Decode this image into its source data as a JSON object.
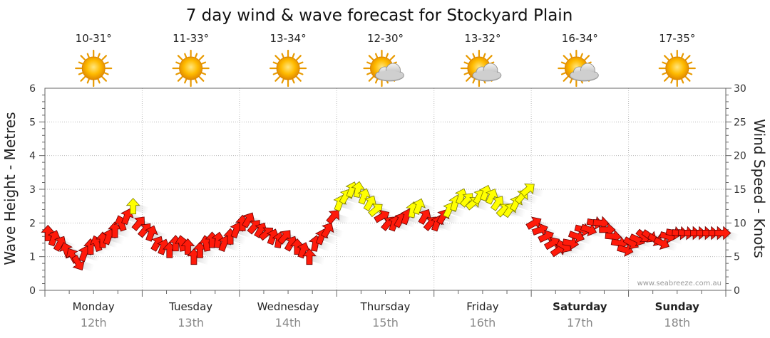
{
  "chart_data": {
    "type": "wind-wave-forecast",
    "title": "7 day wind & wave forecast for Stockyard Plain",
    "ylabel_left": "Wave Height - Metres",
    "ylabel_right": "Wind Speed - Knots",
    "y_left_range": [
      0,
      6
    ],
    "y_right_range": [
      0,
      30
    ],
    "y_left_ticks": [
      "0",
      "1",
      "2",
      "3",
      "4",
      "5",
      "6"
    ],
    "y_right_ticks": [
      "0",
      "5",
      "10",
      "15",
      "20",
      "25",
      "30"
    ],
    "days": [
      {
        "name": "Monday",
        "date": "12th",
        "temp": "10-31°",
        "weather": "sunny",
        "weekend": false
      },
      {
        "name": "Tuesday",
        "date": "13th",
        "temp": "11-33°",
        "weather": "sunny",
        "weekend": false
      },
      {
        "name": "Wednesday",
        "date": "14th",
        "temp": "13-34°",
        "weather": "sunny",
        "weekend": false
      },
      {
        "name": "Thursday",
        "date": "15th",
        "temp": "12-30°",
        "weather": "partly-cloudy",
        "weekend": false
      },
      {
        "name": "Friday",
        "date": "16th",
        "temp": "13-32°",
        "weather": "partly-cloudy",
        "weekend": false
      },
      {
        "name": "Saturday",
        "date": "17th",
        "temp": "16-34°",
        "weather": "partly-cloudy",
        "weekend": true
      },
      {
        "name": "Sunday",
        "date": "18th",
        "temp": "17-35°",
        "weather": "sunny",
        "weekend": true
      }
    ],
    "wind_series": [
      {
        "name": "Monday",
        "speeds": [
          8.5,
          7.8,
          7,
          6,
          5.2,
          4,
          5.5,
          6.5,
          7,
          7.5,
          8,
          9,
          10,
          11,
          12.5,
          10
        ],
        "dirs": [
          180,
          200,
          210,
          160,
          150,
          330,
          200,
          180,
          160,
          180,
          200,
          180,
          160,
          200,
          180,
          220
        ]
      },
      {
        "name": "Tuesday",
        "speeds": [
          9,
          8.5,
          7,
          6.5,
          6,
          7,
          7,
          6.5,
          5,
          6,
          7,
          7.5,
          7.5,
          7,
          8,
          9
        ],
        "dirs": [
          220,
          200,
          210,
          200,
          180,
          180,
          170,
          180,
          180,
          180,
          170,
          180,
          190,
          200,
          180,
          200
        ]
      },
      {
        "name": "Wednesday",
        "speeds": [
          10,
          10.5,
          9.5,
          9,
          8.5,
          8,
          7.5,
          8,
          7,
          6.5,
          6,
          5,
          7,
          8,
          9,
          11
        ],
        "dirs": [
          180,
          210,
          220,
          210,
          230,
          200,
          190,
          220,
          210,
          180,
          200,
          180,
          190,
          200,
          210,
          220
        ]
      },
      {
        "name": "Thursday",
        "speeds": [
          13,
          14,
          15,
          15,
          14,
          13,
          12,
          11,
          10,
          10,
          10.5,
          11,
          12,
          12.5,
          11,
          10
        ],
        "dirs": [
          200,
          210,
          200,
          190,
          200,
          210,
          230,
          240,
          220,
          200,
          210,
          200,
          190,
          200,
          210,
          220
        ]
      },
      {
        "name": "Friday",
        "speeds": [
          10,
          11,
          12,
          13,
          14,
          13.5,
          13,
          14,
          14.5,
          14,
          13,
          12,
          12,
          13,
          14,
          15
        ],
        "dirs": [
          200,
          210,
          205,
          195,
          200,
          220,
          230,
          210,
          200,
          205,
          215,
          225,
          215,
          205,
          220,
          230
        ]
      },
      {
        "name": "Saturday",
        "speeds": [
          10,
          9,
          8,
          7,
          6,
          6.5,
          7,
          8,
          9,
          9,
          10,
          10,
          9,
          8,
          7,
          6
        ],
        "dirs": [
          240,
          250,
          245,
          240,
          235,
          300,
          280,
          290,
          285,
          290,
          280,
          275,
          270,
          275,
          280,
          285
        ]
      },
      {
        "name": "Sunday",
        "speeds": [
          7,
          7.5,
          8,
          8,
          7.5,
          7,
          8,
          8.5,
          8.5,
          8.5,
          8.5,
          8.5,
          8.5,
          8.5,
          8.5,
          8.5
        ],
        "dirs": [
          300,
          295,
          310,
          305,
          300,
          295,
          285,
          280,
          275,
          275,
          270,
          270,
          270,
          270,
          270,
          270
        ]
      }
    ],
    "watermark": "www.seabreeze.com.au"
  }
}
